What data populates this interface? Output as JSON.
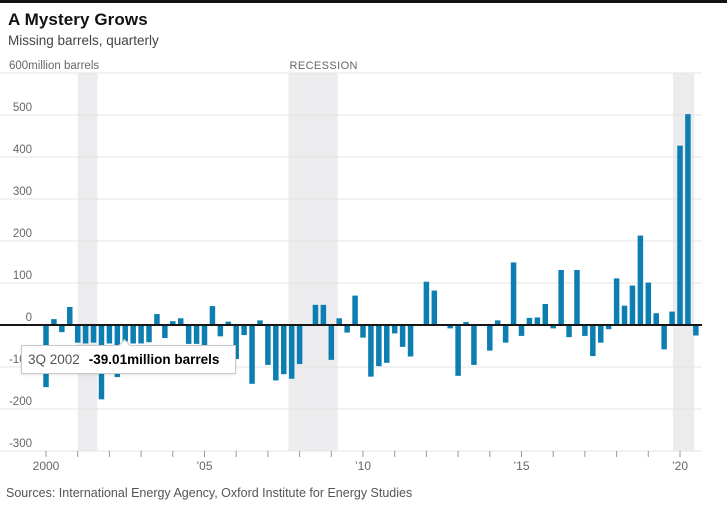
{
  "header": {
    "title": "A Mystery Grows",
    "subtitle": "Missing barrels, quarterly"
  },
  "tooltip": {
    "quarter": "3Q 2002",
    "value": "-39.01million barrels"
  },
  "footer": {
    "sources": "Sources: International Energy Agency, Oxford Institute for Energy Studies"
  },
  "colors": {
    "bar": "#0d7eb1",
    "recession_band": "#ececee",
    "grid": "#e4e4e4",
    "zero_line": "#161616",
    "axis_text": "#666666",
    "tick": "#999999"
  },
  "chart_data": {
    "type": "bar",
    "title": "A Mystery Grows",
    "subtitle": "Missing barrels, quarterly",
    "unit_label": "600million barrels",
    "recession_label": "RECESSION",
    "frequency": "quarterly",
    "start_quarter": "1Q 2000",
    "end_quarter": "3Q 2020",
    "ylim": [
      -300,
      600
    ],
    "grid": true,
    "y_ticks": [
      600,
      500,
      400,
      300,
      200,
      100,
      0,
      -100,
      -200,
      -300
    ],
    "x_ticks": [
      {
        "year": 2000,
        "label": "2000"
      },
      {
        "year": 2005,
        "label": "’05"
      },
      {
        "year": 2010,
        "label": "’10"
      },
      {
        "year": 2015,
        "label": "’15"
      },
      {
        "year": 2020,
        "label": "’20"
      }
    ],
    "minor_tick_start": 2000,
    "minor_tick_end": 2020,
    "recessions": [
      {
        "start": 2001.0,
        "end": 2001.62
      },
      {
        "start": 2007.65,
        "end": 2009.2
      },
      {
        "start": 2019.78,
        "end": 2020.45
      }
    ],
    "highlighted_quarter_index": 10,
    "values": [
      -148,
      14,
      -17,
      43,
      -42,
      -44,
      -42,
      -177,
      -44,
      -124,
      -39.01,
      -44,
      -44,
      -41,
      26,
      -31,
      9,
      16,
      -45,
      -45,
      -60,
      45,
      -27,
      8,
      -81,
      -24,
      -140,
      11,
      -95,
      -132,
      -117,
      -128,
      -93,
      2,
      48,
      48,
      -83,
      16,
      -18,
      70,
      -30,
      -123,
      -98,
      -90,
      -20,
      -52,
      -75,
      2,
      103,
      82,
      2,
      -8,
      -121,
      7,
      -95,
      2,
      -61,
      11,
      -42,
      149,
      -26,
      17,
      18,
      50,
      -8,
      131,
      -29,
      131,
      -26,
      -74,
      -42,
      -10,
      111,
      46,
      94,
      213,
      101,
      28,
      -58,
      32,
      427,
      502,
      -25
    ]
  }
}
